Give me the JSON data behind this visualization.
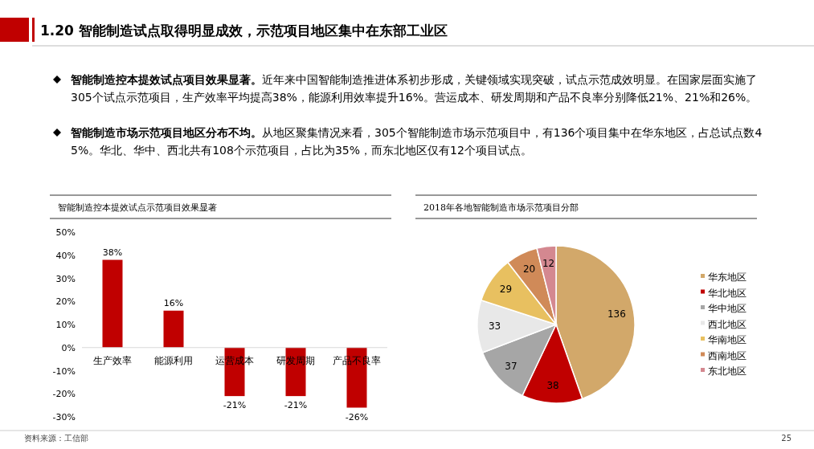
{
  "chart_data": [
    {
      "type": "other",
      "title": "1.20 智能制造试点取得明显成效，示范项目地区集中在东部工业区",
      "annotations": [
        "智能制造控本提效试点项目效果显著。",
        "近年来中国智能制造推进体系初步形成，关键领域实现突破，试点示范成效明显。在国家层面实施了305个试点示范项目，生产效率平均提高38%，能源利用效率提升16%。营运成本、研发周期和产品不良率分别降低21%、21%和26%。",
        "智能制造市场示范项目地区分布不均。",
        "从地区聚集情况来看，305个智能制造市场示范项目中，有136个项目集中在华东地区，占总试点数45%。华北、华中、西北共有108个示范项目，占比为35%，而东北地区仅有12个项目试点。",
        "资料来源：工信部",
        "25"
      ]
    },
    {
      "type": "bar",
      "title": "智能制造控本提效试点示范项目效果显著",
      "categories": [
        "生产效率",
        "能源利用",
        "运营成本",
        "研发周期",
        "产品不良率"
      ],
      "values": [
        38,
        16,
        -21,
        -21,
        -26
      ],
      "color": "#c00000",
      "value_labels": [
        "38%",
        "16%",
        "-21%",
        "-21%",
        "-26%"
      ],
      "ylim": [
        -30,
        50
      ],
      "yticks": [
        {
          "value": -30,
          "label": "-30%"
        },
        {
          "value": -20,
          "label": "-20%"
        },
        {
          "value": -10,
          "label": "-10%"
        },
        {
          "value": 0,
          "label": "0%"
        },
        {
          "value": 10,
          "label": "10%"
        },
        {
          "value": 20,
          "label": "20%"
        },
        {
          "value": 30,
          "label": "30%"
        },
        {
          "value": 40,
          "label": "40%"
        },
        {
          "value": 50,
          "label": "50%"
        }
      ]
    },
    {
      "type": "pie",
      "title": "2018年各地智能制造市场示范项目分部",
      "categories": [
        "华东地区",
        "华北地区",
        "华中地区",
        "西北地区",
        "华南地区",
        "西南地区",
        "东北地区"
      ],
      "values": [
        136,
        38,
        37,
        33,
        29,
        20,
        12
      ],
      "colors": [
        "#d2a86a",
        "#c00000",
        "#a6a6a6",
        "#e8e8e8",
        "#e8c060",
        "#d08a58",
        "#d48890"
      ],
      "data_labels": true,
      "legend": "right"
    }
  ]
}
